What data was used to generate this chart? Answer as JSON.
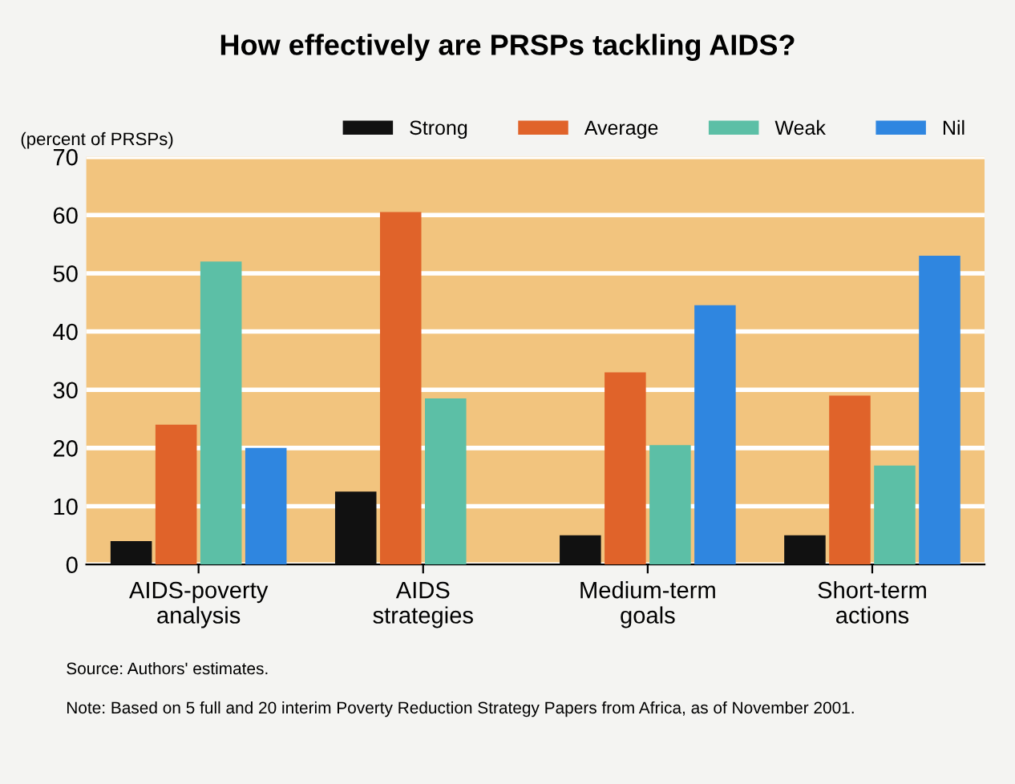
{
  "chart_data": {
    "type": "bar",
    "title": "How effectively are PRSPs tackling AIDS?",
    "ylabel": "(percent of PRSPs)",
    "categories": [
      "AIDS-poverty\nanalysis",
      "AIDS\nstrategies",
      "Medium-term\ngoals",
      "Short-term\nactions"
    ],
    "series": [
      {
        "name": "Strong",
        "color": "#111111",
        "values": [
          4,
          12.5,
          5,
          5
        ]
      },
      {
        "name": "Average",
        "color": "#e0632a",
        "values": [
          24,
          60.5,
          33,
          29
        ]
      },
      {
        "name": "Weak",
        "color": "#5cbfa6",
        "values": [
          52,
          28.5,
          20.5,
          17
        ]
      },
      {
        "name": "Nil",
        "color": "#2f86e0",
        "values": [
          20,
          0,
          44.5,
          53
        ]
      }
    ],
    "ylim": [
      0,
      70
    ],
    "yticks": [
      0,
      10,
      20,
      30,
      40,
      50,
      60,
      70
    ],
    "grid": "y",
    "legend": "top",
    "annotations": [
      "Source: Authors' estimates.",
      "Note: Based on 5 full and 20 interim Poverty Reduction Strategy Papers from Africa, as of November 2001."
    ]
  }
}
